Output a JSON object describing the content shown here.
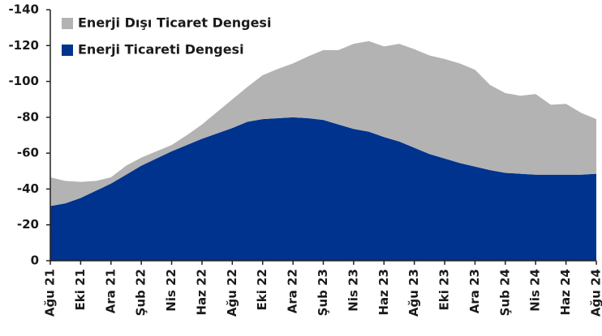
{
  "chart_data": {
    "type": "stacked_area",
    "categories": [
      "Ağu 21",
      null,
      "Eki 21",
      null,
      "Ara 21",
      null,
      "Şub 22",
      null,
      "Nis 22",
      null,
      "Haz 22",
      null,
      "Ağu 22",
      null,
      "Eki 22",
      null,
      "Ara 22",
      null,
      "Şub 23",
      null,
      "Nis 23",
      null,
      "Haz 23",
      null,
      "Ağu 23",
      null,
      "Eki 23",
      null,
      "Ara 23",
      null,
      "Şub 24",
      null,
      "Nis 24",
      null,
      "Haz 24",
      null,
      "Ağu 24"
    ],
    "series": [
      {
        "name": "Enerji Ticareti Dengesi",
        "color": "#00338d",
        "values": [
          -30.5,
          -32,
          -35,
          -39,
          -43,
          -48,
          -53,
          -57,
          -61,
          -64.5,
          -68,
          -71,
          -74,
          -77.5,
          -79,
          -79.5,
          -80,
          -79.5,
          -78.5,
          -76,
          -73.5,
          -72,
          -69,
          -66.5,
          -63,
          -59.5,
          -57,
          -54.5,
          -52.5,
          -50.5,
          -49,
          -48.5,
          -48,
          -48,
          -48,
          -48,
          -48.5
        ]
      },
      {
        "name": "Enerji Dışı Ticaret Dengesi",
        "color": "#b3b3b3",
        "values": [
          -16,
          -12.5,
          -9,
          -5.5,
          -3.5,
          -5,
          -4.5,
          -4,
          -3.5,
          -5.5,
          -8,
          -12,
          -16,
          -19.5,
          -24.5,
          -27.5,
          -30,
          -34.5,
          -39,
          -41.5,
          -47.5,
          -50.5,
          -50.5,
          -54.5,
          -55,
          -55,
          -55.5,
          -55.5,
          -54,
          -47.5,
          -44.5,
          -43.5,
          -45,
          -39,
          -39.5,
          -34.5,
          -30.5
        ]
      }
    ],
    "ylim": [
      0,
      -140
    ],
    "yticks": [
      0,
      -20,
      -40,
      -60,
      -80,
      -100,
      -120,
      -140
    ],
    "legend": "top-left"
  }
}
